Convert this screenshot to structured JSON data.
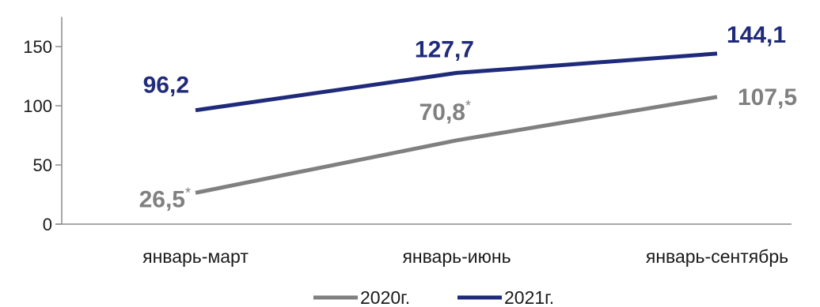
{
  "chart_data": {
    "type": "line",
    "categories": [
      "январь-март",
      "январь-июнь",
      "январь-сентябрь"
    ],
    "ylim": [
      0,
      175
    ],
    "yticks": [
      0,
      50,
      100,
      150
    ],
    "grid": false,
    "legend_position": "bottom",
    "series": [
      {
        "name": "2020г.",
        "color": "#808080",
        "values": [
          26.5,
          70.8,
          107.5
        ],
        "labels": [
          "26,5",
          "70,8",
          "107,5"
        ],
        "label_notes": [
          "*",
          "*",
          ""
        ]
      },
      {
        "name": "2021г.",
        "color": "#1f2b7a",
        "values": [
          96.2,
          127.7,
          144.1
        ],
        "labels": [
          "96,2",
          "127,7",
          "144,1"
        ],
        "label_notes": [
          "",
          "",
          ""
        ]
      }
    ]
  }
}
